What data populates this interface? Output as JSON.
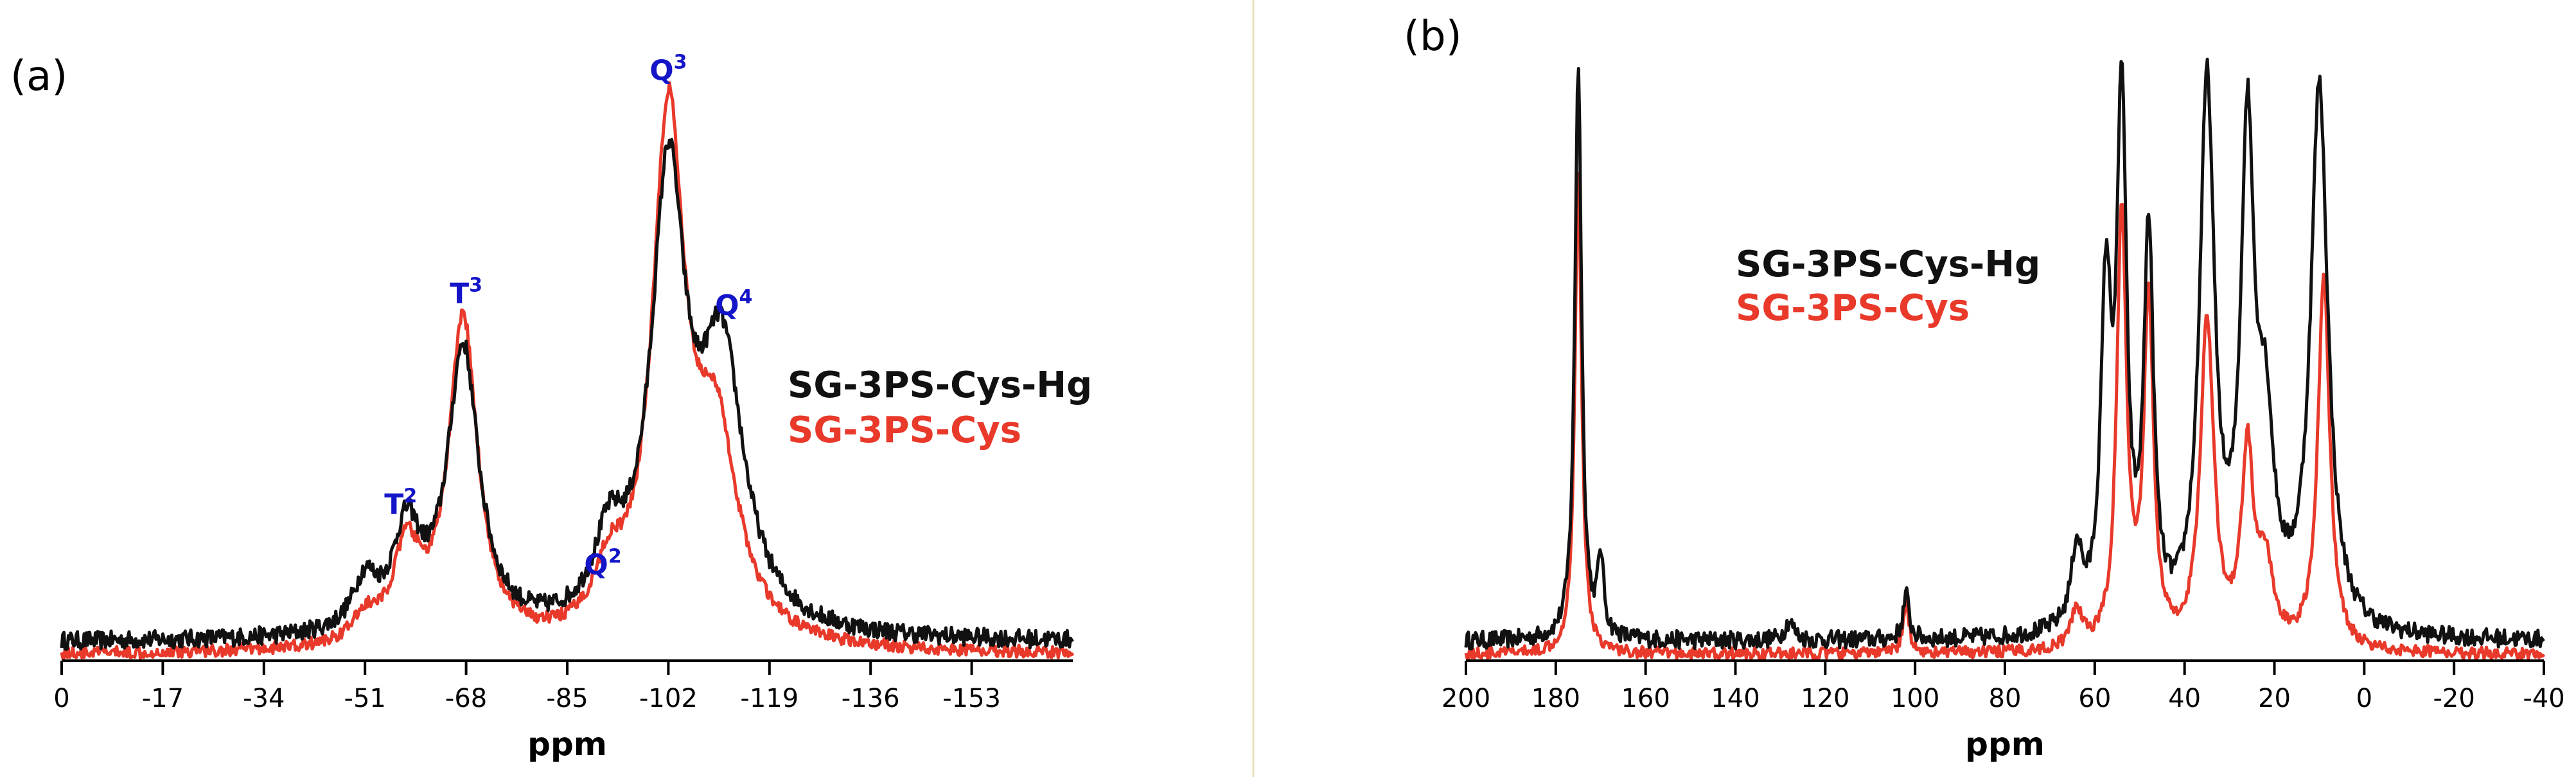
{
  "colors": {
    "black": "#111111",
    "red": "#e8392a",
    "blue": "#1414c8"
  },
  "chart_data": [
    {
      "type": "line",
      "panel_label": "(a)",
      "xlabel": "ppm",
      "ylabel": "",
      "xlim": [
        0,
        -170
      ],
      "ylim": [
        0,
        100
      ],
      "x_ticks": [
        "0",
        "-17",
        "-34",
        "-51",
        "-68",
        "-85",
        "-102",
        "-119",
        "-136",
        "-153"
      ],
      "legend": [
        {
          "name": "SG-3PS-Cys-Hg",
          "color": "#111111"
        },
        {
          "name": "SG-3PS-Cys",
          "color": "#e8392a"
        }
      ],
      "peak_labels": [
        {
          "name": "T",
          "sup": "2",
          "x": -57,
          "y": 27
        },
        {
          "name": "T",
          "sup": "3",
          "x": -68,
          "y": 62
        },
        {
          "name": "Q",
          "sup": "2",
          "x": -91,
          "y": 17
        },
        {
          "name": "Q",
          "sup": "3",
          "x": -102,
          "y": 99
        },
        {
          "name": "Q",
          "sup": "4",
          "x": -113,
          "y": 60
        }
      ],
      "series": [
        {
          "name": "SG-3PS-Cys-Hg",
          "color": "#111111",
          "baseline": 3,
          "noise": 1.5,
          "peaks": [
            {
              "center": -51,
              "height": 8,
              "width": 2.5
            },
            {
              "center": -58,
              "height": 16,
              "width": 2.8
            },
            {
              "center": -67.5,
              "height": 47,
              "width": 3.2
            },
            {
              "center": -92,
              "height": 12,
              "width": 3.0
            },
            {
              "center": -102,
              "height": 73,
              "width": 3.5
            },
            {
              "center": -111,
              "height": 44,
              "width": 4.5
            }
          ]
        },
        {
          "name": "SG-3PS-Cys",
          "color": "#e8392a",
          "baseline": 1,
          "noise": 1.0,
          "peaks": [
            {
              "center": -51,
              "height": 4,
              "width": 2.5
            },
            {
              "center": -58,
              "height": 15,
              "width": 2.8
            },
            {
              "center": -67.5,
              "height": 54,
              "width": 3.0
            },
            {
              "center": -92,
              "height": 9,
              "width": 3.0
            },
            {
              "center": -102,
              "height": 85,
              "width": 3.3
            },
            {
              "center": -110,
              "height": 32,
              "width": 4.5
            }
          ]
        }
      ]
    },
    {
      "type": "line",
      "panel_label": "(b)",
      "xlabel": "ppm",
      "ylabel": "",
      "xlim": [
        200,
        -40
      ],
      "ylim": [
        0,
        100
      ],
      "x_ticks": [
        "200",
        "180",
        "160",
        "140",
        "120",
        "100",
        "80",
        "60",
        "40",
        "20",
        "0",
        "-20",
        "-40"
      ],
      "legend": [
        {
          "name": "SG-3PS-Cys-Hg",
          "color": "#111111"
        },
        {
          "name": "SG-3PS-Cys",
          "color": "#e8392a"
        }
      ],
      "series": [
        {
          "name": "SG-3PS-Cys-Hg",
          "color": "#111111",
          "baseline": 3,
          "noise": 1.4,
          "peaks": [
            {
              "center": 175,
              "height": 90,
              "width": 0.9
            },
            {
              "center": 170,
              "height": 12,
              "width": 0.8
            },
            {
              "center": 128,
              "height": 3,
              "width": 1.2
            },
            {
              "center": 102,
              "height": 7,
              "width": 0.8
            },
            {
              "center": 64,
              "height": 12,
              "width": 1.5
            },
            {
              "center": 57.5,
              "height": 50,
              "width": 1.4
            },
            {
              "center": 54,
              "height": 80,
              "width": 1.3
            },
            {
              "center": 48,
              "height": 60,
              "width": 1.3
            },
            {
              "center": 35,
              "height": 84,
              "width": 2.0
            },
            {
              "center": 26,
              "height": 74,
              "width": 1.8
            },
            {
              "center": 22,
              "height": 28,
              "width": 2.2
            },
            {
              "center": 10,
              "height": 85,
              "width": 2.3
            }
          ]
        },
        {
          "name": "SG-3PS-Cys",
          "color": "#e8392a",
          "baseline": 1,
          "noise": 0.9,
          "peaks": [
            {
              "center": 175,
              "height": 75,
              "width": 0.9
            },
            {
              "center": 102,
              "height": 8,
              "width": 0.8
            },
            {
              "center": 64,
              "height": 6,
              "width": 1.5
            },
            {
              "center": 54,
              "height": 68,
              "width": 1.3
            },
            {
              "center": 48,
              "height": 54,
              "width": 1.3
            },
            {
              "center": 35,
              "height": 51,
              "width": 1.8
            },
            {
              "center": 26,
              "height": 30,
              "width": 1.6
            },
            {
              "center": 22,
              "height": 12,
              "width": 2.0
            },
            {
              "center": 9,
              "height": 58,
              "width": 1.6
            }
          ]
        }
      ]
    }
  ]
}
